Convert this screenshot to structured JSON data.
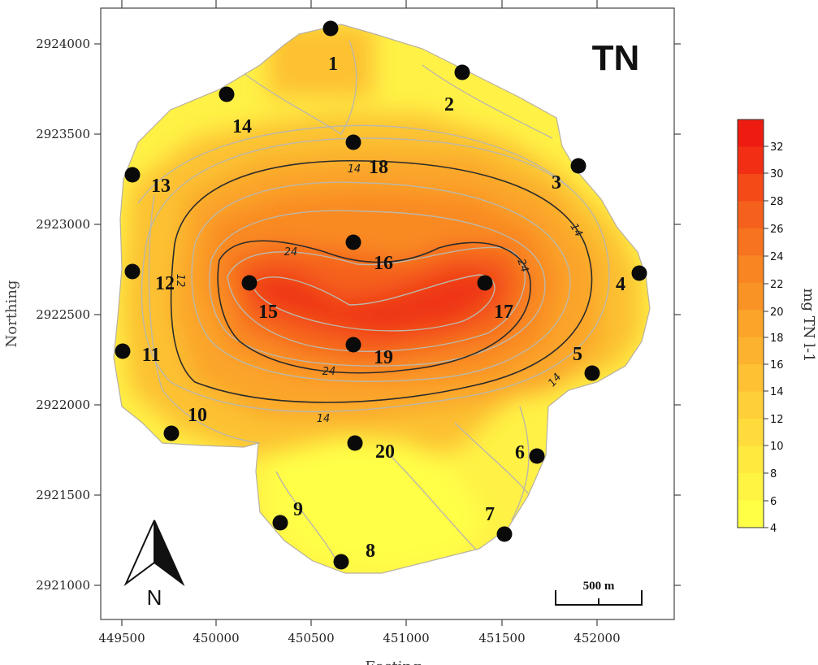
{
  "map": {
    "title": "TN",
    "x_axis_title": "Easting",
    "y_axis_title": "Northing",
    "x_ticks": [
      "449500",
      "450000",
      "450500",
      "451000",
      "451500",
      "452000"
    ],
    "y_ticks": [
      "2924000",
      "2923500",
      "2923000",
      "2922500",
      "2922000",
      "2921500",
      "2921000"
    ],
    "contour_labels": [
      "14",
      "14",
      "14",
      "14",
      "24",
      "24",
      "24",
      "12"
    ],
    "north_label": "N",
    "scale_bar_label": "500 m"
  },
  "legend": {
    "title": "mg TN l-1",
    "levels": [
      "32",
      "30",
      "28",
      "26",
      "24",
      "22",
      "20",
      "18",
      "16",
      "14",
      "12",
      "10",
      "8",
      "6",
      "4"
    ],
    "colors": [
      "#ee1c10",
      "#f22f14",
      "#f44a18",
      "#f5611c",
      "#f7731f",
      "#f88422",
      "#f99325",
      "#fba429",
      "#fcb22e",
      "#fdc133",
      "#fecf38",
      "#ffdc3c",
      "#ffe93f",
      "#fff442",
      "#ffff46"
    ]
  },
  "sites": [
    {
      "label": "1"
    },
    {
      "label": "2"
    },
    {
      "label": "3"
    },
    {
      "label": "4"
    },
    {
      "label": "5"
    },
    {
      "label": "6"
    },
    {
      "label": "7"
    },
    {
      "label": "8"
    },
    {
      "label": "9"
    },
    {
      "label": "10"
    },
    {
      "label": "11"
    },
    {
      "label": "12"
    },
    {
      "label": "13"
    },
    {
      "label": "14"
    },
    {
      "label": "15"
    },
    {
      "label": "16"
    },
    {
      "label": "17"
    },
    {
      "label": "18"
    },
    {
      "label": "19"
    },
    {
      "label": "20"
    }
  ]
}
